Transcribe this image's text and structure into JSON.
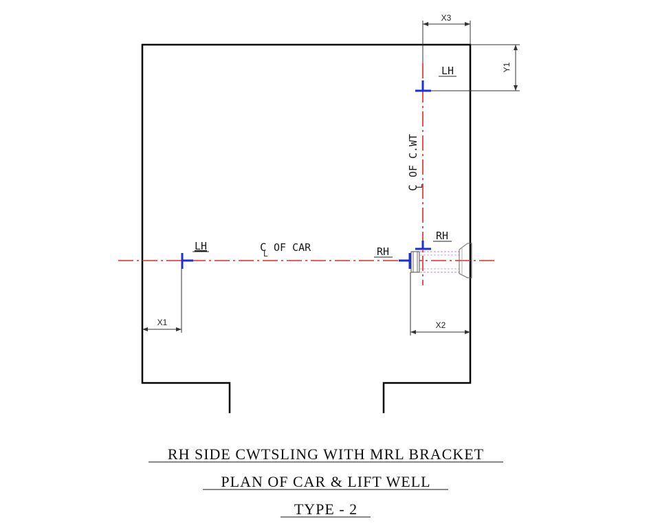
{
  "labels": {
    "lh_car": "LH",
    "cl_car": "OF CAR",
    "cl_symbol_car": "C",
    "cl_sub_car": "L",
    "rh_car": "RH",
    "lh_cwt": "LH",
    "rh_cwt": "RH",
    "cl_cwt": "OF C.WT",
    "cl_symbol_cwt": "C",
    "cl_sub_cwt": "L"
  },
  "dimensions": {
    "x1": "X1",
    "x2": "X2",
    "x3": "X3",
    "y1": "Y1"
  },
  "titles": {
    "line1": "RH SIDE CWTSLING WITH MRL BRACKET",
    "line2": "PLAN OF CAR & LIFT WELL",
    "line3": "TYPE - 2"
  },
  "colors": {
    "outline": "#000000",
    "centerline": "#e8252a",
    "rail": "#1c2fd6",
    "bracket": "#b98fd2"
  }
}
